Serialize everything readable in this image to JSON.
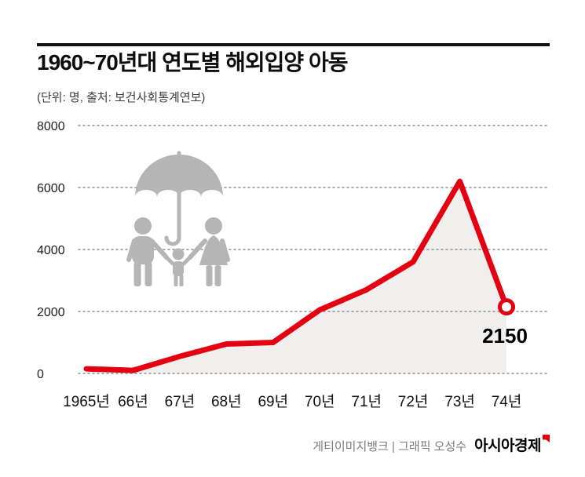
{
  "header": {
    "title": "1960~70년대 연도별 해외입양 아동",
    "subtitle": "(단위: 명, 출처: 보건사회통계연보)"
  },
  "chart_data": {
    "type": "line",
    "title": "1960~70년대 연도별 해외입양 아동",
    "unit_note": "(단위: 명, 출처: 보건사회통계연보)",
    "categories": [
      "1965년",
      "66년",
      "67년",
      "68년",
      "69년",
      "70년",
      "71년",
      "72년",
      "73년",
      "74년"
    ],
    "values": [
      150,
      100,
      550,
      950,
      1000,
      2050,
      2700,
      3600,
      6200,
      2150
    ],
    "yticks": [
      0,
      2000,
      4000,
      6000,
      8000
    ],
    "ylim": [
      0,
      8000
    ],
    "end_label": "2150",
    "line_color": "#e50011",
    "area_color": "#f0efee",
    "grid": "dotted-horizontal",
    "legend": "none",
    "xlabel": "",
    "ylabel": ""
  },
  "icons": {
    "family_umbrella": "family-under-umbrella-icon",
    "brand_mark": "red-flag-mark-icon"
  },
  "footer": {
    "credits": "게티이미지뱅크 | 그래픽 오성수",
    "brand": "아시아경제"
  }
}
